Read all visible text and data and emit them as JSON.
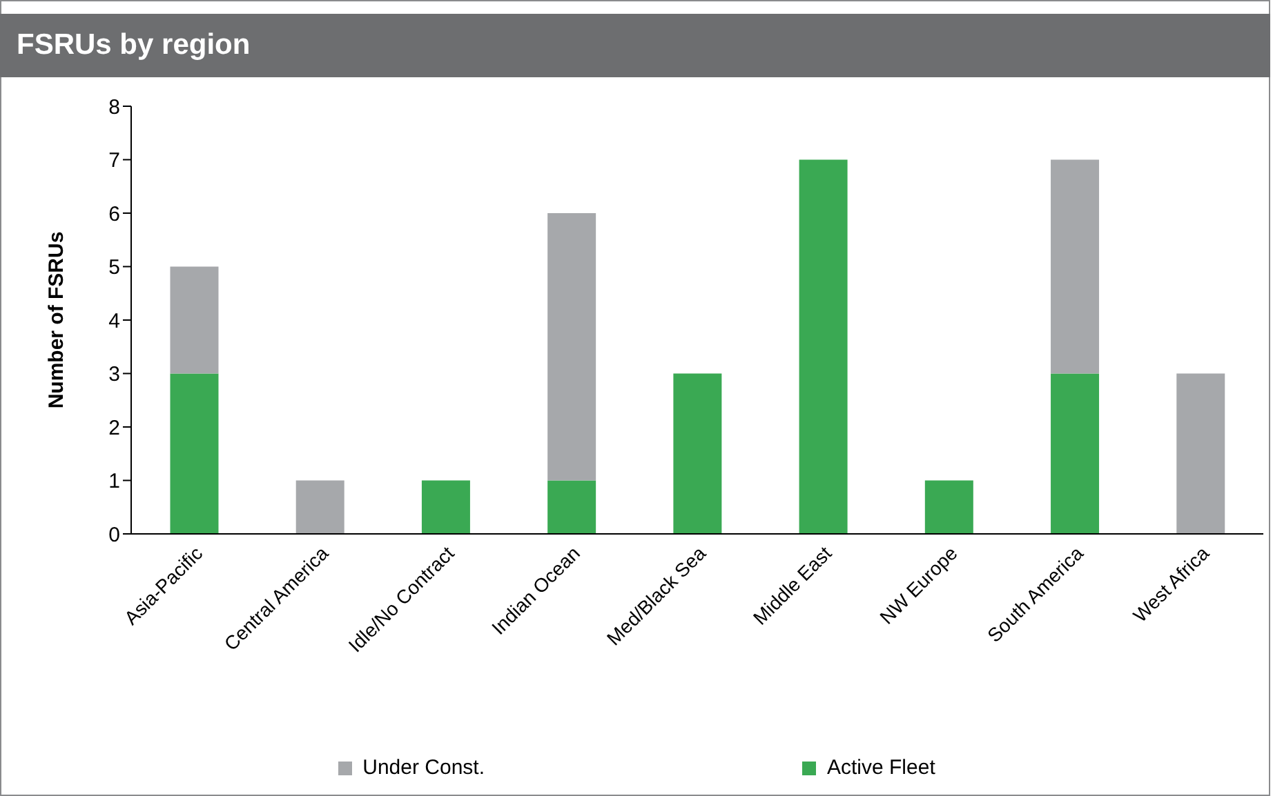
{
  "chart_data": {
    "type": "bar",
    "title": "FSRUs by region",
    "ylabel": "Number of FSRUs",
    "categories": [
      "Asia-Pacific",
      "Central America",
      "Idle/No Contract",
      "Indian Ocean",
      "Med/Black Sea",
      "Middle East",
      "NW Europe",
      "South America",
      "West Africa"
    ],
    "series": [
      {
        "name": "Active Fleet",
        "color": "#3aa953",
        "values": [
          3,
          0,
          1,
          1,
          3,
          7,
          1,
          3,
          0
        ]
      },
      {
        "name": "Under Const.",
        "color": "#a6a8ab",
        "values": [
          2,
          1,
          0,
          5,
          0,
          0,
          0,
          4,
          3
        ]
      }
    ],
    "stacked": true,
    "ylim": [
      0,
      8
    ],
    "yticks": [
      0,
      1,
      2,
      3,
      4,
      5,
      6,
      7,
      8
    ],
    "grid": false,
    "legend": "bottom"
  }
}
